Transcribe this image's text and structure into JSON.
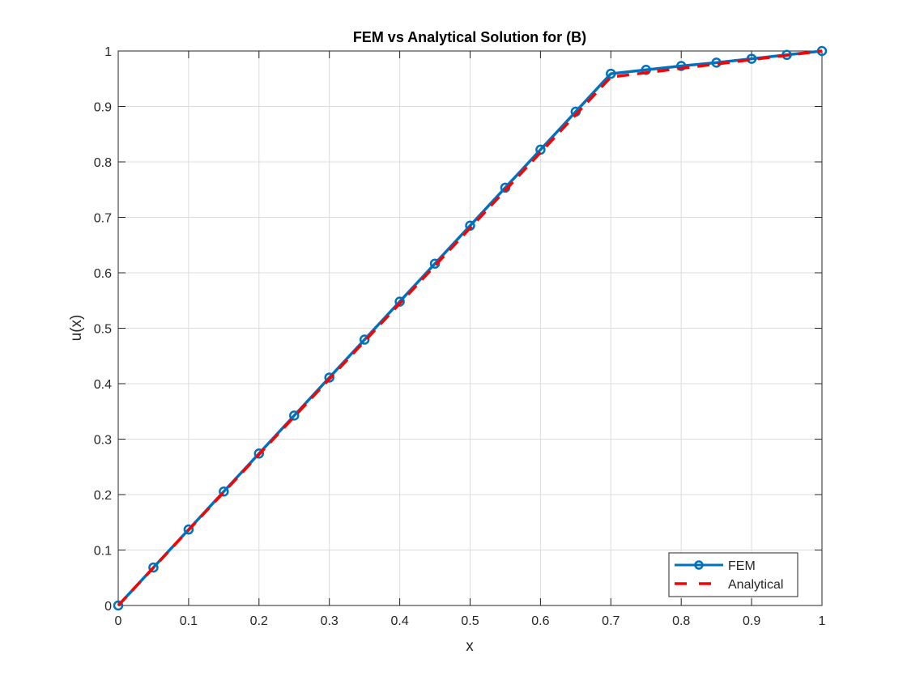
{
  "chart_data": {
    "type": "line",
    "title": "FEM vs Analytical Solution for (B)",
    "xlabel": "x",
    "ylabel": "u(x)",
    "xlim": [
      0,
      1
    ],
    "ylim": [
      0,
      1
    ],
    "xticks": [
      "0",
      "0.1",
      "0.2",
      "0.3",
      "0.4",
      "0.5",
      "0.6",
      "0.7",
      "0.8",
      "0.9",
      "1"
    ],
    "yticks": [
      "0",
      "0.1",
      "0.2",
      "0.3",
      "0.4",
      "0.5",
      "0.6",
      "0.7",
      "0.8",
      "0.9",
      "1"
    ],
    "grid": true,
    "legend_placement": "bottom-right",
    "series": [
      {
        "name": "FEM",
        "style": "solid line with circle markers",
        "color": "#0072BD",
        "x": [
          0,
          0.05,
          0.1,
          0.15,
          0.2,
          0.25,
          0.3,
          0.35,
          0.4,
          0.45,
          0.5,
          0.55,
          0.6,
          0.65,
          0.7,
          0.75,
          0.8,
          0.85,
          0.9,
          0.95,
          1
        ],
        "y": [
          0,
          0.0685,
          0.137,
          0.2055,
          0.274,
          0.3425,
          0.411,
          0.4795,
          0.548,
          0.6165,
          0.685,
          0.7535,
          0.822,
          0.8905,
          0.959,
          0.966,
          0.973,
          0.979,
          0.986,
          0.993,
          1
        ]
      },
      {
        "name": "Analytical",
        "style": "dashed line",
        "color": "#FF0000",
        "x": [
          0,
          0.7,
          1
        ],
        "y": [
          0,
          0.953,
          1
        ]
      }
    ]
  }
}
